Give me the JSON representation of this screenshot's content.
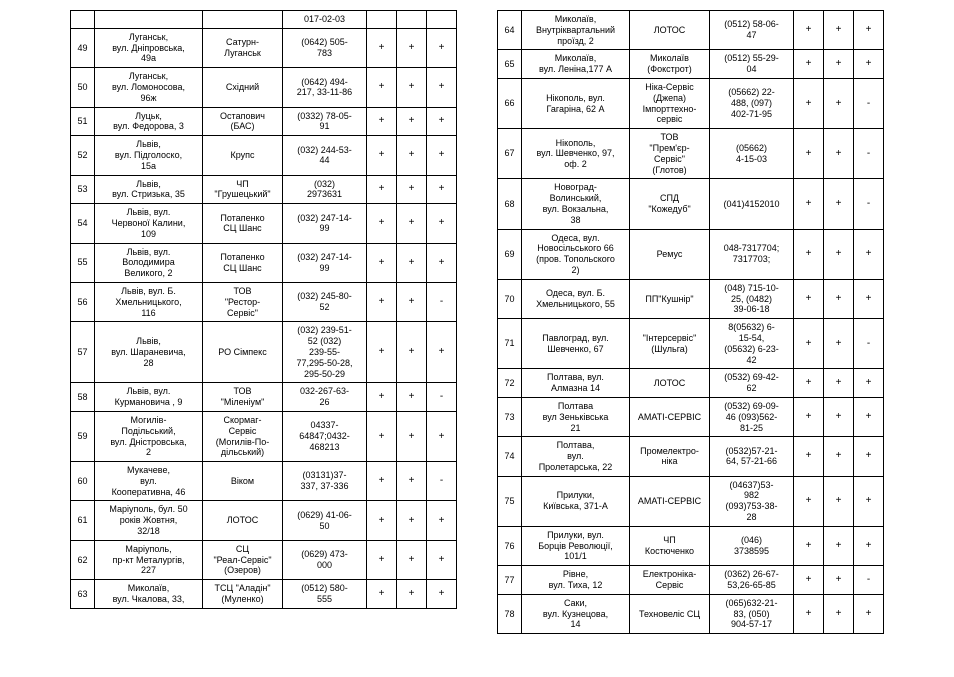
{
  "left_table": {
    "columns": [
      "num",
      "address",
      "company",
      "phone",
      "c1",
      "c2",
      "c3"
    ],
    "col_classes": [
      "c0",
      "c1",
      "c2",
      "c3",
      "c4",
      "c5",
      "c6"
    ],
    "rows": [
      [
        "",
        "",
        "",
        "017-02-03",
        "",
        "",
        ""
      ],
      [
        "49",
        "Луганськ,\nвул. Дніпровська,\n49а",
        "Сатурн-\nЛуганськ",
        "(0642) 505-\n783",
        "+",
        "+",
        "+"
      ],
      [
        "50",
        "Луганськ,\nвул. Ломоносова,\n96ж",
        "Східний",
        "(0642) 494-\n217, 33-11-86",
        "+",
        "+",
        "+"
      ],
      [
        "51",
        "Луцьк,\nвул. Федорова, 3",
        "Остапович\n(БАС)",
        "(0332) 78-05-\n91",
        "+",
        "+",
        "+"
      ],
      [
        "52",
        "Львів,\nвул. Підголоско,\n15а",
        "Крупс",
        "(032) 244-53-\n44",
        "+",
        "+",
        "+"
      ],
      [
        "53",
        "Львів,\nвул. Стризька, 35",
        "ЧП\n\"Грушецький\"",
        "(032)\n2973631",
        "+",
        "+",
        "+"
      ],
      [
        "54",
        "Львів, вул.\nЧервоної Калини,\n109",
        "Потапенко\nСЦ Шанс",
        "(032) 247-14-\n99",
        "+",
        "+",
        "+"
      ],
      [
        "55",
        "Львів, вул.\nВолодимира\nВеликого, 2",
        "Потапенко\nСЦ Шанс",
        "(032) 247-14-\n99",
        "+",
        "+",
        "+"
      ],
      [
        "56",
        "Львів, вул. Б.\nХмельницького,\n116",
        "ТОВ\n\"Рестор-\nСервіс\"",
        "(032) 245-80-\n52",
        "+",
        "+",
        "-"
      ],
      [
        "57",
        "Львів,\nвул. Шараневича,\n28",
        "РО Сімпекс",
        "(032) 239-51-\n52 (032)\n239-55-\n77,295-50-28,\n295-50-29",
        "+",
        "+",
        "+"
      ],
      [
        "58",
        "Львів, вул.\nКурмановича , 9",
        "ТОВ\n\"Міленіум\"",
        "032-267-63-\n26",
        "+",
        "+",
        "-"
      ],
      [
        "59",
        "Могилів-\nПодільський,\nвул. Дністровська,\n2",
        "Скормаг-\nСервіс\n(Могилів-По-\nдільський)",
        "04337-\n64847;0432-\n468213",
        "+",
        "+",
        "+"
      ],
      [
        "60",
        "Мукачеве,\nвул.\nКооперативна, 46",
        "Віком",
        "(03131)37-\n337, 37-336",
        "+",
        "+",
        "-"
      ],
      [
        "61",
        "Маріуполь, бул. 50\nроків Жовтня,\n32/18",
        "ЛОТОС",
        "(0629) 41-06-\n50",
        "+",
        "+",
        "+"
      ],
      [
        "62",
        "Маріуполь,\nпр-кт Металургів,\n227",
        "СЦ\n\"Реал-Сервіс\"\n(Озеров)",
        "(0629) 473-\n000",
        "+",
        "+",
        "+"
      ],
      [
        "63",
        "Миколаїв,\nвул. Чкалова, 33,",
        "ТСЦ \"Аладін\"\n(Муленко)",
        "(0512) 580-\n555",
        "+",
        "+",
        "+"
      ]
    ]
  },
  "right_table": {
    "columns": [
      "num",
      "address",
      "company",
      "phone",
      "c1",
      "c2",
      "c3"
    ],
    "col_classes": [
      "c0",
      "c1",
      "c2",
      "c3",
      "c4",
      "c5",
      "c6"
    ],
    "rows": [
      [
        "64",
        "Миколаїв,\nВнутріквартальний\nпроїзд, 2",
        "ЛОТОС",
        "(0512) 58-06-\n47",
        "+",
        "+",
        "+"
      ],
      [
        "65",
        "Миколаїв,\nвул. Леніна,177 А",
        "Миколаїв\n(Фокстрот)",
        "(0512) 55-29-\n04",
        "+",
        "+",
        "+"
      ],
      [
        "66",
        "Нікополь, вул.\nГагаріна, 62 А",
        "Ніка-Сервіс\n(Джепа)\nІмпорттехно-\nсервіс",
        "(05662) 22-\n488, (097)\n402-71-95",
        "+",
        "+",
        "-"
      ],
      [
        "67",
        "Нікополь,\nвул. Шевченко, 97,\nоф. 2",
        "ТОВ\n\"Прем'єр-\nСервіс\"\n(Глотов)",
        "(05662)\n4-15-03",
        "+",
        "+",
        "-"
      ],
      [
        "68",
        "Новоград-\nВолинський,\nвул. Вокзальна,\n38",
        "СПД\n\"Кожедуб\"",
        "(041)4152010",
        "+",
        "+",
        "-"
      ],
      [
        "69",
        "Одеса, вул.\nНовосільського 66\n(пров. Топольского\n2)",
        "Ремус",
        "048-7317704;\n7317703;",
        "+",
        "+",
        "+"
      ],
      [
        "70",
        "Одеса, вул. Б.\nХмельницького, 55",
        "ПП\"Кушнір\"",
        "(048) 715-10-\n25, (0482)\n39-06-18",
        "+",
        "+",
        "+"
      ],
      [
        "71",
        "Павлоград,  вул.\nШевченко, 67",
        "\"Інтерсервіс\"\n(Шульга)",
        "8(05632) 6-\n15-54,\n(05632) 6-23-\n42",
        "+",
        "+",
        "-"
      ],
      [
        "72",
        "Полтава, вул.\nАлмазна 14",
        "ЛОТОС",
        "(0532) 69-42-\n62",
        "+",
        "+",
        "+"
      ],
      [
        "73",
        "Полтава\nвул Зеньківська\n21",
        "АМАТІ-СЕРВІС",
        "(0532) 69-09-\n46 (093)562-\n81-25",
        "+",
        "+",
        "+"
      ],
      [
        "74",
        "Полтава,\nвул.\nПролетарська, 22",
        "Промелектро-\nніка",
        "(0532)57-21-\n64, 57-21-66",
        "+",
        "+",
        "+"
      ],
      [
        "75",
        "Прилуки,\nКиївська, 371-А",
        "АМАТІ-СЕРВІС",
        "(04637)53-\n982\n(093)753-38-\n28",
        "+",
        "+",
        "+"
      ],
      [
        "76",
        "Прилуки, вул.\nБорців Революції,\n101/1",
        "ЧП\nКостюченко",
        "(046)\n3738595",
        "+",
        "+",
        "+"
      ],
      [
        "77",
        "Рівне,\nвул. Тиха, 12",
        "Електроніка-\nСервіс",
        "(0362) 26-67-\n53,26-65-85",
        "+",
        "+",
        "-"
      ],
      [
        "78",
        "Саки,\nвул. Кузнецова,\n14",
        "Техновеліс СЦ",
        "(065)632-21-\n83, (050)\n904-57-17",
        "+",
        "+",
        "+"
      ]
    ]
  }
}
